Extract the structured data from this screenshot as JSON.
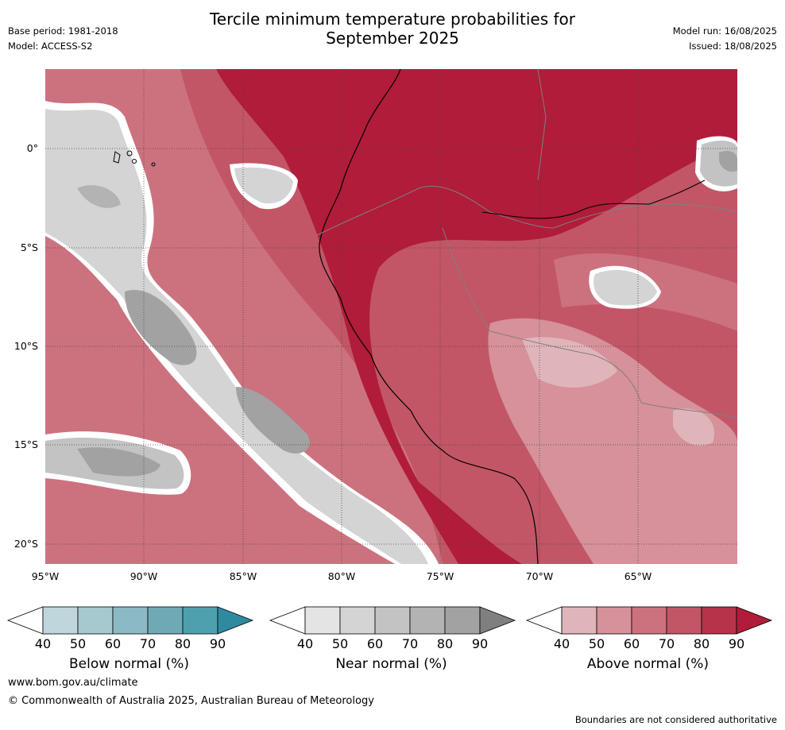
{
  "title_line1": "Tercile minimum temperature probabilities for",
  "title_line2": "September 2025",
  "base_period": "Base period: 1981-2018",
  "model": "Model: ACCESS-S2",
  "model_run": "Model run: 16/08/2025",
  "issued": "Issued: 18/08/2025",
  "lat_labels": [
    "0°",
    "5°S",
    "10°S",
    "15°S",
    "20°S"
  ],
  "lon_labels": [
    "95°W",
    "90°W",
    "85°W",
    "80°W",
    "75°W",
    "70°W",
    "65°W"
  ],
  "colorbars": [
    {
      "label": "Below normal (%)",
      "ticks": [
        "40",
        "50",
        "60",
        "70",
        "80",
        "90"
      ],
      "colors": [
        "#ffffff",
        "#bfd6dc",
        "#a6c9d0",
        "#8bb9c4",
        "#6fa9b6",
        "#4ea0ae",
        "#2f8aa0"
      ]
    },
    {
      "label": "Near normal (%)",
      "ticks": [
        "40",
        "50",
        "60",
        "70",
        "80",
        "90"
      ],
      "colors": [
        "#ffffff",
        "#e4e4e4",
        "#d4d4d4",
        "#c3c3c3",
        "#b3b3b3",
        "#a2a2a2",
        "#7f7f7f"
      ]
    },
    {
      "label": "Above normal (%)",
      "ticks": [
        "40",
        "50",
        "60",
        "70",
        "80",
        "90"
      ],
      "colors": [
        "#ffffff",
        "#e0b5ba",
        "#d6919a",
        "#cc727e",
        "#c25666",
        "#b63349",
        "#b01c3a"
      ]
    }
  ],
  "footer_url": "www.bom.gov.au/climate",
  "footer_copyright": "© Commonwealth of Australia 2025, Australian Bureau of Meteorology",
  "disclaimer": "Boundaries are not considered authoritative"
}
